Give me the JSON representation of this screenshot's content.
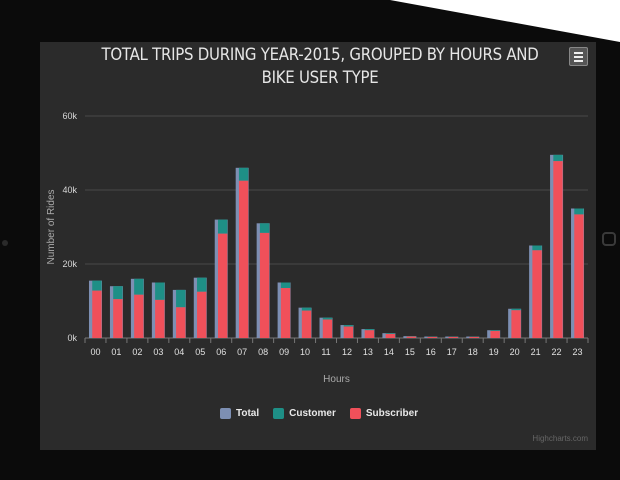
{
  "chart_data": {
    "type": "bar",
    "title": "TOTAL TRIPS DURING YEAR-2015, GROUPED BY HOURS AND BIKE USER TYPE",
    "xlabel": "Hours",
    "ylabel": "Number of Rides",
    "ylim": [
      0,
      60000
    ],
    "yticks": [
      "0k",
      "20k",
      "40k",
      "60k"
    ],
    "categories": [
      "00",
      "01",
      "02",
      "03",
      "04",
      "05",
      "06",
      "07",
      "08",
      "09",
      "10",
      "11",
      "12",
      "13",
      "14",
      "15",
      "16",
      "17",
      "18",
      "19",
      "20",
      "21",
      "22",
      "23"
    ],
    "series": [
      {
        "name": "Total",
        "color": "#7d8fb3",
        "values": [
          15500,
          14000,
          16000,
          15000,
          13000,
          16300,
          32000,
          46000,
          31000,
          15000,
          8200,
          5500,
          3500,
          2400,
          1300,
          500,
          400,
          400,
          400,
          2100,
          7900,
          25000,
          49500,
          35000
        ]
      },
      {
        "name": "Customer",
        "color": "#1e8f86",
        "values": [
          2700,
          3500,
          4300,
          4700,
          4700,
          3800,
          3800,
          3500,
          2600,
          1500,
          800,
          500,
          400,
          300,
          200,
          100,
          100,
          100,
          100,
          200,
          400,
          1300,
          1700,
          1600
        ]
      },
      {
        "name": "Subscriber",
        "color": "#f0505a",
        "values": [
          12800,
          10500,
          11700,
          10300,
          8300,
          12500,
          28200,
          42500,
          28400,
          13500,
          7400,
          5000,
          3100,
          2100,
          1100,
          400,
          300,
          300,
          300,
          1900,
          7500,
          23700,
          47800,
          33400
        ]
      }
    ],
    "legend": "bottom-center",
    "grid": true
  },
  "ui": {
    "credits": "Highcharts.com"
  }
}
